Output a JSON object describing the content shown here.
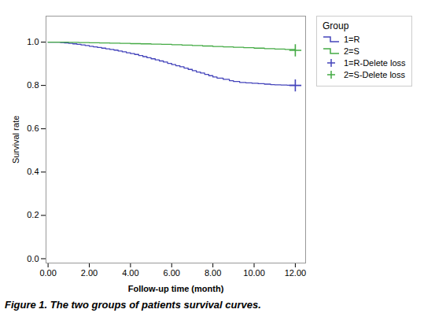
{
  "chart_data": {
    "type": "line",
    "xlabel": "Follow-up time (month)",
    "ylabel": "Survival rate",
    "caption": "Figure 1. The two groups of patients survival curves.",
    "legend_title": "Group",
    "legend": "right",
    "grid": false,
    "xlim": [
      -0.1,
      12.5
    ],
    "ylim": [
      -0.02,
      1.12
    ],
    "xticks": [
      {
        "value": 0.0,
        "label": "0.00"
      },
      {
        "value": 2.0,
        "label": "2.00"
      },
      {
        "value": 4.0,
        "label": "4.00"
      },
      {
        "value": 6.0,
        "label": "6.00"
      },
      {
        "value": 8.0,
        "label": "8.00"
      },
      {
        "value": 10.0,
        "label": "10.00"
      },
      {
        "value": 12.0,
        "label": "12.00"
      }
    ],
    "yticks": [
      {
        "value": 0.0,
        "label": "0.0"
      },
      0.2,
      0.4,
      0.6,
      0.8,
      {
        "value": 1.0,
        "label": "1.0"
      }
    ],
    "series": [
      {
        "name": "1=R",
        "color": "#4444bb",
        "type": "line",
        "line_style": "step",
        "x": [
          0.0,
          0.2,
          0.4,
          0.6,
          0.8,
          1.0,
          1.2,
          1.4,
          1.6,
          1.8,
          2.0,
          2.2,
          2.4,
          2.6,
          2.8,
          3.0,
          3.2,
          3.4,
          3.6,
          3.8,
          4.0,
          4.2,
          4.4,
          4.6,
          4.8,
          5.0,
          5.2,
          5.4,
          5.6,
          5.8,
          6.0,
          6.2,
          6.4,
          6.6,
          6.8,
          7.0,
          7.2,
          7.4,
          7.6,
          7.8,
          8.0,
          8.2,
          8.5,
          8.8,
          9.0,
          9.3,
          9.6,
          9.9,
          10.2,
          10.5,
          10.8,
          11.0,
          11.3,
          11.6,
          12.0
        ],
        "values": [
          1.0,
          1.0,
          1.0,
          0.998,
          0.996,
          0.994,
          0.992,
          0.99,
          0.987,
          0.984,
          0.981,
          0.978,
          0.975,
          0.972,
          0.969,
          0.966,
          0.963,
          0.959,
          0.955,
          0.951,
          0.947,
          0.943,
          0.938,
          0.933,
          0.928,
          0.923,
          0.918,
          0.913,
          0.908,
          0.902,
          0.896,
          0.891,
          0.886,
          0.88,
          0.874,
          0.868,
          0.862,
          0.857,
          0.851,
          0.845,
          0.839,
          0.834,
          0.828,
          0.822,
          0.818,
          0.814,
          0.812,
          0.81,
          0.808,
          0.806,
          0.804,
          0.803,
          0.802,
          0.801,
          0.8
        ]
      },
      {
        "name": "2=S",
        "color": "#44aa44",
        "type": "line",
        "line_style": "step",
        "x": [
          0.0,
          0.5,
          1.0,
          1.5,
          2.0,
          2.5,
          3.0,
          3.5,
          4.0,
          4.5,
          5.0,
          5.5,
          6.0,
          6.5,
          7.0,
          7.5,
          8.0,
          8.5,
          9.0,
          9.5,
          10.0,
          10.5,
          11.0,
          11.5,
          12.0
        ],
        "values": [
          1.0,
          1.0,
          0.999,
          0.998,
          0.997,
          0.996,
          0.995,
          0.994,
          0.993,
          0.992,
          0.991,
          0.99,
          0.988,
          0.986,
          0.984,
          0.982,
          0.98,
          0.978,
          0.976,
          0.974,
          0.972,
          0.97,
          0.968,
          0.966,
          0.962
        ]
      },
      {
        "name": "1=R-Delete loss",
        "color": "#4444bb",
        "type": "scatter",
        "marker": "plus",
        "x": [
          12.0
        ],
        "values": [
          0.8
        ]
      },
      {
        "name": "2=S-Delete loss",
        "color": "#44aa44",
        "type": "scatter",
        "marker": "plus",
        "x": [
          12.0
        ],
        "values": [
          0.962
        ]
      }
    ]
  }
}
